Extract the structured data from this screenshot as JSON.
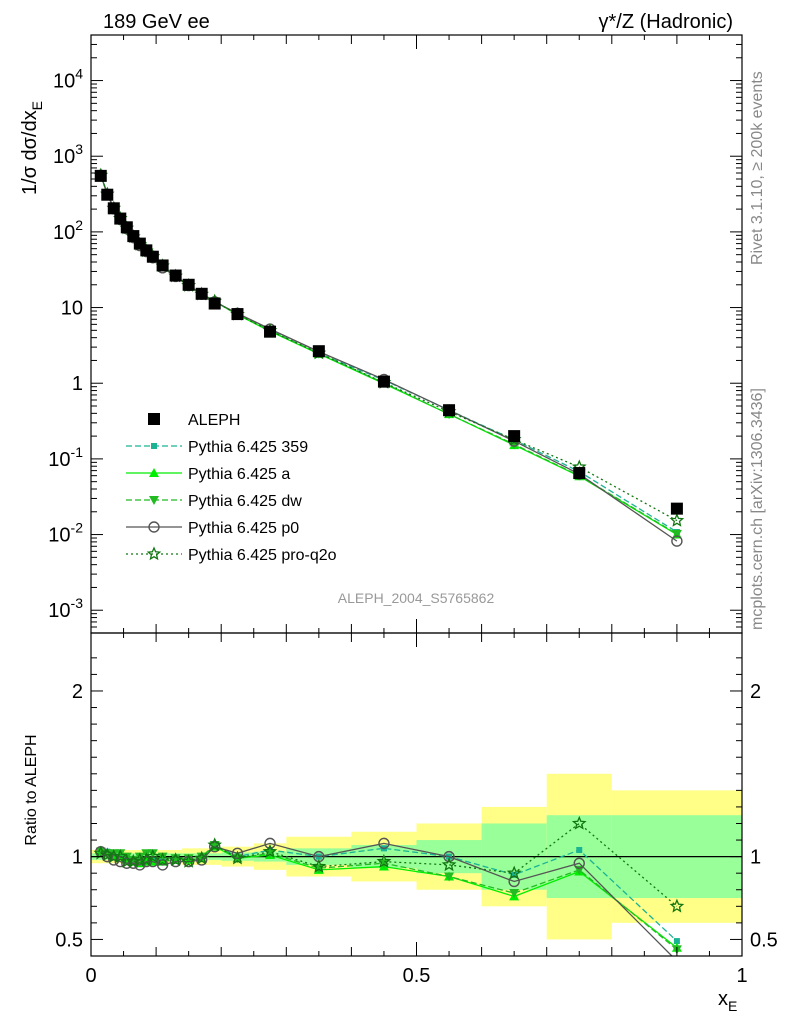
{
  "header": {
    "left": "189 GeV ee",
    "right": "γ*/Z (Hadronic)"
  },
  "side_text": {
    "top": "Rivet 3.1.10, ≥ 200k events",
    "bottom": "mcplots.cern.ch [arXiv:1306.3436]"
  },
  "watermark": "ALEPH_2004_S5765862",
  "chart_data": [
    {
      "type": "scatter",
      "panel": "main",
      "ylabel": "1/σ dσ/dx_E",
      "xlabel": "",
      "yscale": "log",
      "ylim": [
        0.0005,
        40000
      ],
      "xlim": [
        0,
        1
      ],
      "y_tick_labels": [
        "10^-3",
        "10^-2",
        "10^-1",
        "1",
        "10",
        "10^2",
        "10^3",
        "10^4"
      ],
      "legend_position": "left-middle",
      "x": [
        0.015,
        0.025,
        0.035,
        0.045,
        0.055,
        0.065,
        0.075,
        0.085,
        0.095,
        0.11,
        0.13,
        0.15,
        0.17,
        0.19,
        0.225,
        0.275,
        0.35,
        0.45,
        0.55,
        0.65,
        0.75,
        0.9
      ],
      "series": [
        {
          "name": "ALEPH",
          "color": "#000000",
          "values": [
            550,
            310,
            205,
            150,
            115,
            88,
            70,
            57,
            47,
            36,
            26.5,
            20,
            15.2,
            11.3,
            8.2,
            4.8,
            2.65,
            1.05,
            0.44,
            0.2,
            0.065,
            0.022
          ]
        },
        {
          "name": "Pythia 6.425 359",
          "color": "#1ab394",
          "values": [
            570,
            320,
            208,
            152,
            114,
            86,
            68,
            56,
            46,
            35,
            26,
            19.6,
            15,
            12.1,
            8.1,
            5,
            2.48,
            1.1,
            0.44,
            0.178,
            0.068,
            0.0108
          ]
        },
        {
          "name": "Pythia 6.425 a",
          "color": "#00ee00",
          "values": [
            565,
            318,
            208,
            150,
            112,
            85,
            67,
            55,
            45.5,
            34.8,
            25.8,
            19.5,
            15,
            12,
            8.05,
            4.85,
            2.44,
            0.99,
            0.39,
            0.152,
            0.059,
            0.01
          ]
        },
        {
          "name": "Pythia 6.425 dw",
          "color": "#22bb22",
          "values": [
            565,
            318,
            208,
            152,
            113,
            86,
            70,
            57.5,
            48,
            36,
            26,
            19.8,
            15.3,
            12.1,
            8.15,
            4.95,
            2.46,
            1.01,
            0.39,
            0.156,
            0.06,
            0.0102
          ]
        },
        {
          "name": "Pythia 6.425 p0",
          "color": "#555555",
          "values": [
            560,
            315,
            202,
            146,
            110,
            84,
            66,
            55,
            45.5,
            33.5,
            25.8,
            19.5,
            15,
            11.9,
            8.4,
            5.2,
            2.62,
            1.12,
            0.44,
            0.172,
            0.063,
            0.0082
          ]
        },
        {
          "name": "Pythia 6.425 pro-q2o",
          "color": "#117711",
          "values": [
            560,
            315,
            205,
            150,
            112,
            86,
            68,
            56,
            47,
            35.5,
            26,
            19.5,
            15,
            12.1,
            8.1,
            4.95,
            2.5,
            1.02,
            0.42,
            0.18,
            0.078,
            0.0153
          ]
        }
      ]
    },
    {
      "type": "line",
      "panel": "ratio",
      "ylabel": "Ratio to ALEPH",
      "xlabel": "x_E",
      "ylim": [
        0.4,
        2.35
      ],
      "xlim": [
        0,
        1
      ],
      "x_tick_labels": [
        "0",
        "0.5",
        "1"
      ],
      "y_tick_labels": [
        "0.5",
        "1",
        "2"
      ],
      "x": [
        0.015,
        0.025,
        0.035,
        0.045,
        0.055,
        0.065,
        0.075,
        0.085,
        0.095,
        0.11,
        0.13,
        0.15,
        0.17,
        0.19,
        0.225,
        0.275,
        0.35,
        0.45,
        0.55,
        0.65,
        0.75,
        0.9
      ],
      "bands": {
        "bin_edges": [
          0,
          0.01,
          0.02,
          0.03,
          0.04,
          0.05,
          0.06,
          0.07,
          0.08,
          0.09,
          0.1,
          0.12,
          0.14,
          0.16,
          0.18,
          0.2,
          0.25,
          0.3,
          0.4,
          0.5,
          0.6,
          0.7,
          0.8,
          1.0
        ],
        "stat_half_width": [
          0.02,
          0.02,
          0.02,
          0.02,
          0.02,
          0.02,
          0.02,
          0.02,
          0.02,
          0.02,
          0.02,
          0.02,
          0.02,
          0.02,
          0.02,
          0.025,
          0.03,
          0.05,
          0.07,
          0.1,
          0.2,
          0.25,
          0.25
        ],
        "total_half_width": [
          0.04,
          0.04,
          0.04,
          0.04,
          0.04,
          0.04,
          0.04,
          0.04,
          0.04,
          0.04,
          0.04,
          0.04,
          0.05,
          0.05,
          0.05,
          0.06,
          0.08,
          0.12,
          0.15,
          0.2,
          0.3,
          0.5,
          0.4
        ],
        "stat_color": "#99ff99",
        "total_color": "#ffff88"
      },
      "series": [
        {
          "name": "Pythia 6.425 359",
          "color": "#1ab394",
          "values": [
            1.04,
            1.03,
            1.02,
            1.0,
            0.99,
            0.98,
            0.97,
            0.98,
            0.98,
            0.97,
            0.98,
            0.98,
            0.99,
            1.07,
            1.0,
            1.04,
            1.0,
            1.05,
            1.0,
            0.89,
            1.04,
            0.49
          ]
        },
        {
          "name": "Pythia 6.425 a",
          "color": "#00ee00",
          "values": [
            1.03,
            1.02,
            1.01,
            1.0,
            0.98,
            0.97,
            0.96,
            0.97,
            0.97,
            0.97,
            0.98,
            0.98,
            0.99,
            1.06,
            0.99,
            1.01,
            0.92,
            0.94,
            0.88,
            0.76,
            0.91,
            0.45
          ]
        },
        {
          "name": "Pythia 6.425 dw",
          "color": "#22bb22",
          "values": [
            1.03,
            1.02,
            1.02,
            1.02,
            1.0,
            0.98,
            1.0,
            1.02,
            1.02,
            1.0,
            0.99,
            0.99,
            1.0,
            1.07,
            0.99,
            1.02,
            0.93,
            0.96,
            0.88,
            0.78,
            0.92,
            0.44
          ]
        },
        {
          "name": "Pythia 6.425 p0",
          "color": "#555555",
          "values": [
            1.03,
            1.0,
            0.98,
            0.97,
            0.96,
            0.96,
            0.95,
            0.97,
            0.97,
            0.95,
            0.97,
            0.97,
            0.98,
            1.06,
            1.02,
            1.08,
            1.0,
            1.08,
            1.0,
            0.85,
            0.96,
            0.37
          ]
        },
        {
          "name": "Pythia 6.425 pro-q2o",
          "color": "#117711",
          "values": [
            1.02,
            1.01,
            1.0,
            1.0,
            0.97,
            0.97,
            0.98,
            0.98,
            1.0,
            0.98,
            0.98,
            0.97,
            0.99,
            1.07,
            0.99,
            1.03,
            0.94,
            0.97,
            0.95,
            0.9,
            1.2,
            0.7
          ]
        }
      ]
    }
  ]
}
